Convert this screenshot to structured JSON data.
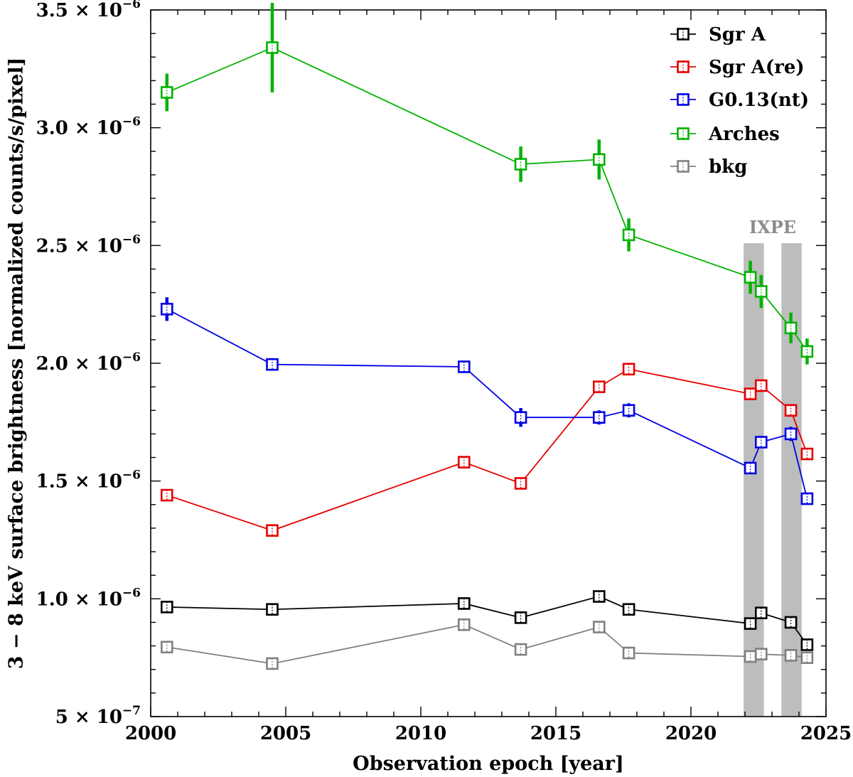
{
  "chart_data": {
    "type": "line",
    "xlabel": "Observation epoch [year]",
    "ylabel": "3 − 8 keV surface brightness [normalized counts/s/pixel]",
    "xlim": [
      2000,
      2025
    ],
    "ylim": [
      5e-07,
      3.5e-06
    ],
    "x_ticks": [
      2000,
      2005,
      2010,
      2015,
      2020,
      2025
    ],
    "x_tick_labels": [
      "2000",
      "2005",
      "2010",
      "2015",
      "2020",
      "2025"
    ],
    "y_ticks": [
      5e-07,
      1e-06,
      1.5e-06,
      2e-06,
      2.5e-06,
      3e-06,
      3.5e-06
    ],
    "y_tick_labels": [
      {
        "mant": "5",
        "exp": "−7"
      },
      {
        "mant": "1.0",
        "exp": "−6"
      },
      {
        "mant": "1.5",
        "exp": "−6"
      },
      {
        "mant": "2.0",
        "exp": "−6"
      },
      {
        "mant": "2.5",
        "exp": "−6"
      },
      {
        "mant": "3.0",
        "exp": "−6"
      },
      {
        "mant": "3.5",
        "exp": "−6"
      }
    ],
    "legend_position": "top-right",
    "shaded_regions": [
      {
        "x0": 2021.95,
        "x1": 2022.7
      },
      {
        "x0": 2023.35,
        "x1": 2024.1
      }
    ],
    "shaded_label": "IXPE",
    "series": [
      {
        "name": "Sgr A",
        "color": "#000000",
        "x": [
          2000.6,
          2004.5,
          2011.6,
          2013.7,
          2016.6,
          2017.7,
          2022.2,
          2022.6,
          2023.7,
          2024.3
        ],
        "y": [
          9.65e-07,
          9.55e-07,
          9.8e-07,
          9.2e-07,
          1.01e-06,
          9.55e-07,
          8.95e-07,
          9.4e-07,
          9e-07,
          8.05e-07
        ],
        "yerr": [
          1e-08,
          1e-08,
          1e-08,
          1e-08,
          1e-08,
          1e-08,
          1e-08,
          1e-08,
          1e-08,
          1e-08
        ]
      },
      {
        "name": "Sgr A(re)",
        "color": "#e60000",
        "x": [
          2000.6,
          2004.5,
          2011.6,
          2013.7,
          2016.6,
          2017.7,
          2022.2,
          2022.6,
          2023.7,
          2024.3
        ],
        "y": [
          1.44e-06,
          1.29e-06,
          1.58e-06,
          1.49e-06,
          1.9e-06,
          1.975e-06,
          1.87e-06,
          1.905e-06,
          1.8e-06,
          1.615e-06
        ],
        "yerr": [
          1e-08,
          1e-08,
          1.2e-08,
          1.2e-08,
          1.2e-08,
          1.2e-08,
          1.2e-08,
          1.2e-08,
          1.2e-08,
          1.2e-08
        ]
      },
      {
        "name": "G0.13(nt)",
        "color": "#0000e6",
        "x": [
          2000.6,
          2004.5,
          2011.6,
          2013.7,
          2016.6,
          2017.7,
          2022.2,
          2022.6,
          2023.7,
          2024.3
        ],
        "y": [
          2.23e-06,
          1.995e-06,
          1.985e-06,
          1.77e-06,
          1.77e-06,
          1.8e-06,
          1.555e-06,
          1.665e-06,
          1.7e-06,
          1.425e-06
        ],
        "yerr": [
          5e-08,
          1.5e-08,
          1.5e-08,
          4e-08,
          3e-08,
          3e-08,
          1.5e-08,
          2e-08,
          3e-08,
          1.5e-08
        ]
      },
      {
        "name": "Arches",
        "color": "#00b300",
        "x": [
          2000.6,
          2004.5,
          2013.7,
          2016.6,
          2017.7,
          2022.2,
          2022.6,
          2023.7,
          2024.3
        ],
        "y": [
          3.15e-06,
          3.34e-06,
          2.845e-06,
          2.865e-06,
          2.545e-06,
          2.365e-06,
          2.305e-06,
          2.15e-06,
          2.05e-06
        ],
        "yerr": [
          8e-08,
          1.9e-07,
          7.5e-08,
          8.5e-08,
          7e-08,
          7e-08,
          7e-08,
          6.5e-08,
          5.5e-08
        ]
      },
      {
        "name": "bkg",
        "color": "#808080",
        "x": [
          2000.6,
          2004.5,
          2011.6,
          2013.7,
          2016.6,
          2017.7,
          2022.2,
          2022.6,
          2023.7,
          2024.3
        ],
        "y": [
          7.95e-07,
          7.25e-07,
          8.9e-07,
          7.85e-07,
          8.8e-07,
          7.7e-07,
          7.55e-07,
          7.65e-07,
          7.6e-07,
          7.5e-07
        ],
        "yerr": [
          1e-08,
          1e-08,
          1e-08,
          1e-08,
          1e-08,
          1e-08,
          1e-08,
          1e-08,
          1e-08,
          1e-08
        ]
      }
    ]
  }
}
